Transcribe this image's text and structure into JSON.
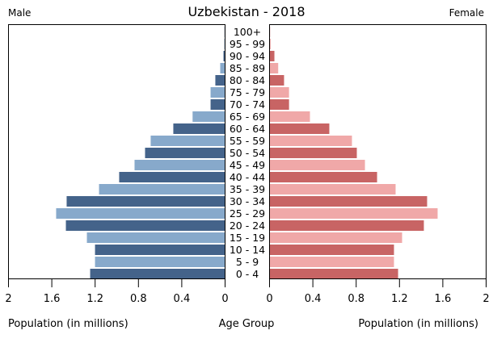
{
  "chart_data": {
    "type": "bar",
    "subtype": "population-pyramid",
    "title": "Uzbekistan - 2018",
    "left_label": "Male",
    "right_label": "Female",
    "xlabel_left": "Population (in millions)",
    "xlabel_center": "Age Group",
    "xlabel_right": "Population (in millions)",
    "xlim": [
      0,
      2
    ],
    "ticks": [
      0,
      0.4,
      0.8,
      1.2,
      1.6,
      2
    ],
    "tick_labels": [
      "0",
      "0.4",
      "0.8",
      "1.2",
      "1.6",
      "2"
    ],
    "grid": false,
    "categories": [
      "100+",
      "95 - 99",
      "90 - 94",
      "85 - 89",
      "80 - 84",
      "75 - 79",
      "70 - 74",
      "65 - 69",
      "60 - 64",
      "55 - 59",
      "50 - 54",
      "45 - 49",
      "40 - 44",
      "35 - 39",
      "30 - 34",
      "25 - 29",
      "20 - 24",
      "15 - 19",
      "10 - 14",
      "5 - 9",
      "0 - 4"
    ],
    "series": [
      {
        "name": "Male",
        "colors": [
          "#44638a",
          "#87a9cb"
        ],
        "values": [
          0.005,
          0.007,
          0.015,
          0.045,
          0.09,
          0.134,
          0.134,
          0.3,
          0.478,
          0.687,
          0.739,
          0.836,
          0.978,
          1.164,
          1.463,
          1.56,
          1.47,
          1.276,
          1.201,
          1.201,
          1.246
        ]
      },
      {
        "name": "Female",
        "colors": [
          "#c86464",
          "#f0a8a8"
        ],
        "values": [
          0.005,
          0.01,
          0.045,
          0.08,
          0.134,
          0.18,
          0.18,
          0.373,
          0.552,
          0.761,
          0.806,
          0.881,
          0.993,
          1.164,
          1.455,
          1.552,
          1.425,
          1.224,
          1.149,
          1.149,
          1.187
        ]
      }
    ]
  }
}
